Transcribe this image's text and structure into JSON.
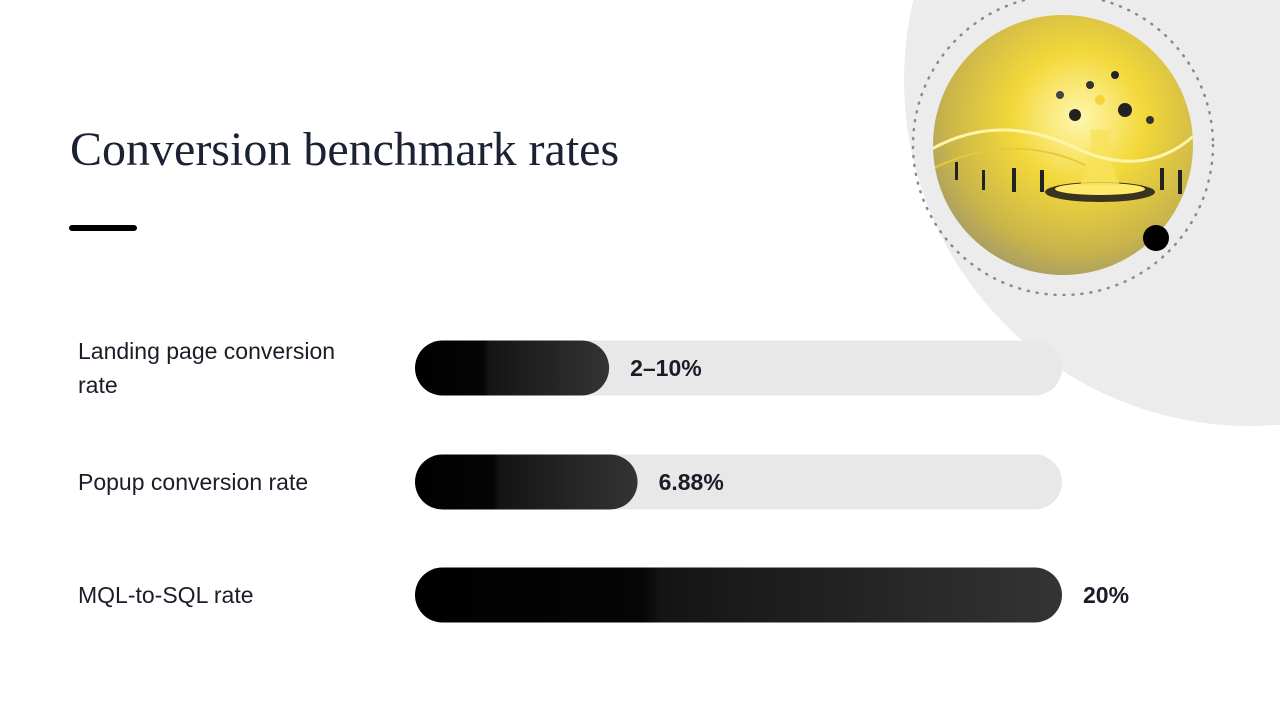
{
  "chart_data": {
    "type": "bar",
    "orientation": "horizontal",
    "title": "Conversion benchmark rates",
    "categories": [
      "Landing page conversion rate",
      "Popup conversion rate",
      "MQL-to-SQL rate"
    ],
    "values": [
      6,
      6.88,
      20
    ],
    "value_labels": [
      "2–10%",
      "6.88%",
      "20%"
    ],
    "xlim": [
      0,
      20
    ],
    "color": "#111111",
    "track_color": "#e8e8e8"
  }
}
